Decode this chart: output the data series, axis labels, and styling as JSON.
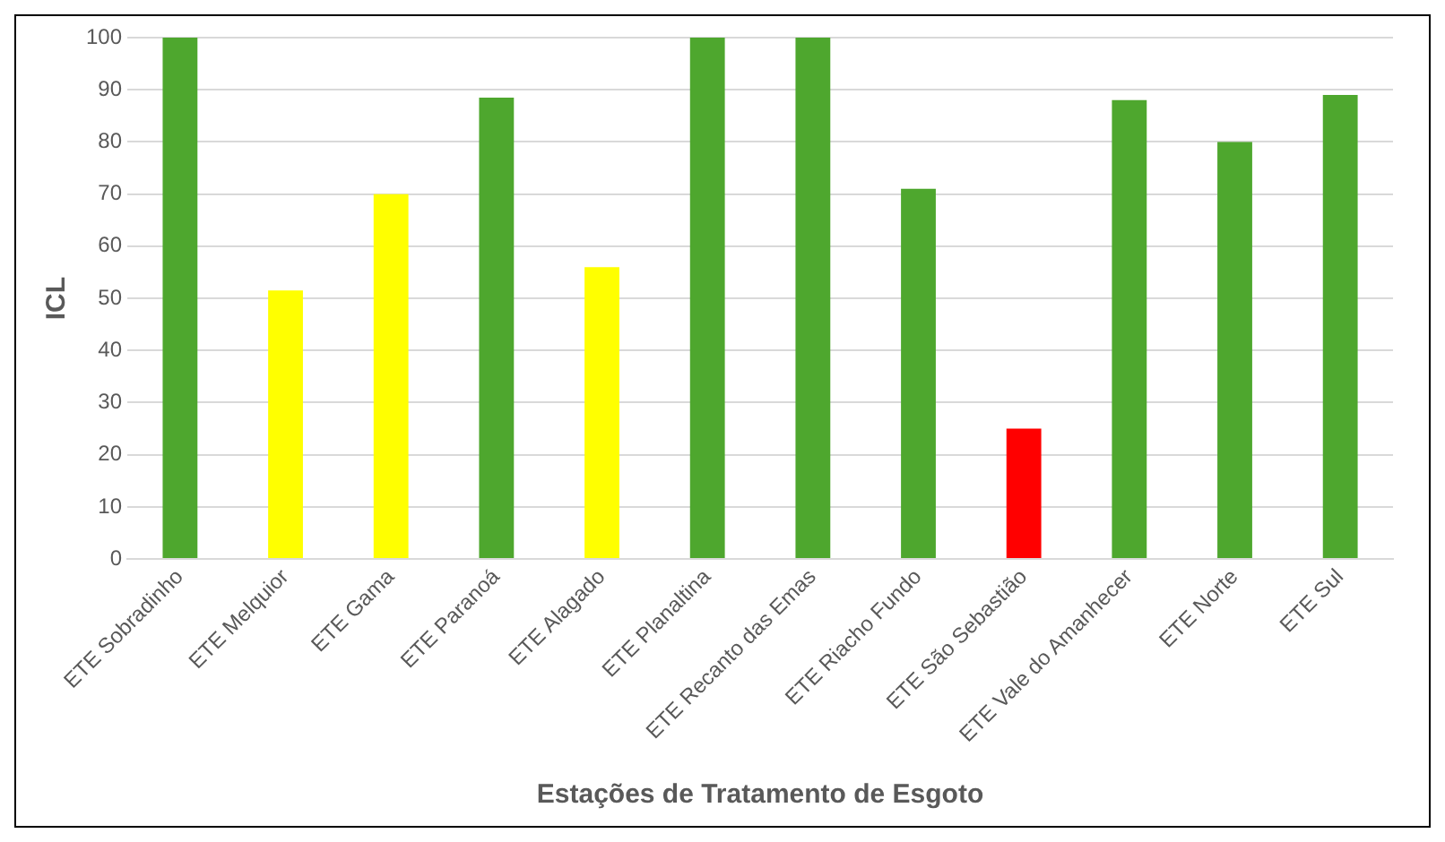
{
  "chart_data": {
    "type": "bar",
    "xlabel": "Estações de Tratamento de Esgoto",
    "ylabel": "ICL",
    "categories": [
      "ETE Sobradinho",
      "ETE Melquior",
      "ETE Gama",
      "ETE Paranoá",
      "ETE Alagado",
      "ETE Planaltina",
      "ETE Recanto das Emas",
      "ETE Riacho Fundo",
      "ETE São Sebastião",
      "ETE Vale do Amanhecer",
      "ETE Norte",
      "ETE Sul"
    ],
    "values": [
      100,
      51.5,
      70,
      88.5,
      56,
      100,
      100,
      71,
      25,
      88,
      80,
      89
    ],
    "colors": [
      "#4ea72e",
      "#ffff00",
      "#ffff00",
      "#4ea72e",
      "#ffff00",
      "#4ea72e",
      "#4ea72e",
      "#4ea72e",
      "#ff0000",
      "#4ea72e",
      "#4ea72e",
      "#4ea72e"
    ],
    "ylim": [
      0,
      100
    ],
    "yticks": [
      0,
      10,
      20,
      30,
      40,
      50,
      60,
      70,
      80,
      90,
      100
    ],
    "grid": "y"
  }
}
